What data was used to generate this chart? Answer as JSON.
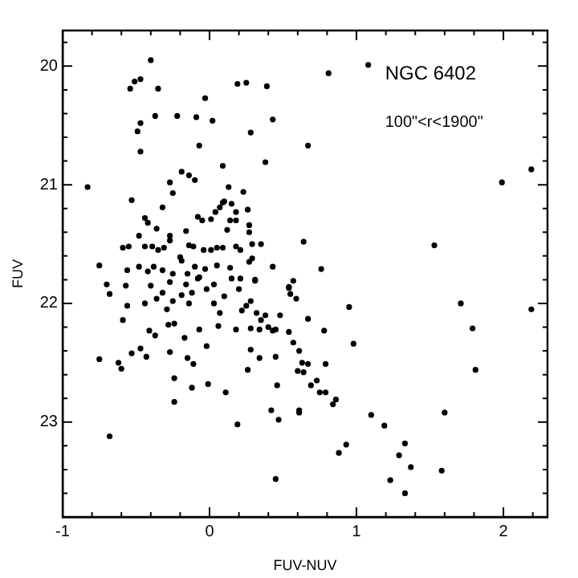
{
  "chart_data": {
    "type": "scatter",
    "xlabel": "FUV-NUV",
    "ylabel": "FUV",
    "annotations": [
      "NGC 6402",
      "100\"<r<1900\""
    ],
    "xlim": [
      -1,
      2.3
    ],
    "ylim": [
      23.8,
      19.7
    ],
    "xticks": [
      -1,
      {
        "value": -0.8,
        "label": null
      },
      {
        "value": -0.6,
        "label": null
      },
      {
        "value": -0.4,
        "label": null
      },
      {
        "value": -0.2,
        "label": null
      },
      0,
      {
        "value": 0.2,
        "label": null
      },
      {
        "value": 0.4,
        "label": null
      },
      {
        "value": 0.6,
        "label": null
      },
      {
        "value": 0.8,
        "label": null
      },
      1,
      {
        "value": 1.2,
        "label": null
      },
      {
        "value": 1.4,
        "label": null
      },
      {
        "value": 1.6,
        "label": null
      },
      {
        "value": 1.8,
        "label": null
      },
      2,
      {
        "value": 2.2,
        "label": null
      }
    ],
    "yticks": [
      {
        "value": 19.8,
        "label": null
      },
      20,
      {
        "value": 20.2,
        "label": null
      },
      {
        "value": 20.4,
        "label": null
      },
      {
        "value": 20.6,
        "label": null
      },
      {
        "value": 20.8,
        "label": null
      },
      21,
      {
        "value": 21.2,
        "label": null
      },
      {
        "value": 21.4,
        "label": null
      },
      {
        "value": 21.6,
        "label": null
      },
      {
        "value": 21.8,
        "label": null
      },
      22,
      {
        "value": 22.2,
        "label": null
      },
      {
        "value": 22.4,
        "label": null
      },
      {
        "value": 22.6,
        "label": null
      },
      {
        "value": 22.8,
        "label": null
      },
      23,
      {
        "value": 23.2,
        "label": null
      },
      {
        "value": 23.4,
        "label": null
      },
      {
        "value": 23.6,
        "label": null
      }
    ],
    "grid": false,
    "legend": false,
    "marker": "circle",
    "series": [
      {
        "color": "#000000",
        "x": [
          -0.4,
          -0.54,
          -0.51,
          -0.47,
          -0.35,
          -0.03,
          0.19,
          0.25,
          0.39,
          -0.37,
          -0.22,
          -0.09,
          0.02,
          0.43,
          -0.47,
          -0.49,
          0.28,
          -0.47,
          -0.07,
          0.09,
          0.38,
          -0.19,
          -0.14,
          -0.1,
          -0.83,
          -0.27,
          -0.25,
          -0.53,
          -0.32,
          0.13,
          0.23,
          0.09,
          0.15,
          0.26,
          -0.44,
          -0.42,
          -0.48,
          -0.36,
          -0.27,
          -0.16,
          -0.08,
          -0.05,
          0.01,
          0.04,
          0.07,
          0.1,
          0.12,
          0.14,
          0.18,
          0.18,
          0.27,
          0.27,
          0.35,
          0.29,
          -0.59,
          -0.55,
          -0.44,
          -0.39,
          -0.35,
          -0.27,
          -0.31,
          -0.2,
          -0.14,
          -0.11,
          -0.04,
          0.01,
          0.05,
          0.09,
          0.18,
          0.21,
          0.27,
          0.29,
          0.43,
          -0.75,
          -0.7,
          -0.56,
          -0.48,
          -0.42,
          -0.38,
          -0.32,
          -0.25,
          -0.19,
          -0.15,
          -0.1,
          -0.03,
          0.05,
          0.14,
          0.21,
          0.31,
          -0.57,
          -0.4,
          -0.27,
          -0.16,
          -0.08,
          0.03,
          -0.68,
          -0.56,
          -0.59,
          -0.44,
          -0.36,
          -0.32,
          -0.29,
          -0.25,
          -0.19,
          -0.14,
          -0.12,
          -0.07,
          -0.02,
          0.03,
          0.07,
          0.1,
          0.15,
          0.2,
          0.22,
          0.25,
          0.28,
          0.31,
          0.32,
          0.35,
          0.38,
          0.43,
          0.48,
          0.54,
          -0.41,
          -0.37,
          -0.28,
          -0.24,
          -0.17,
          -0.07,
          0.06,
          0.18,
          0.28,
          0.34,
          0.4,
          0.45,
          -0.75,
          -0.62,
          -0.6,
          -0.53,
          -0.47,
          -0.43,
          -0.27,
          -0.15,
          -0.11,
          -0.02,
          0.26,
          0.28,
          0.34,
          0.45,
          -0.24,
          -0.24,
          -0.12,
          -0.01,
          0.11,
          0.46,
          0.42,
          0.47,
          0.19,
          -0.68,
          0.45,
          0.81,
          1.08,
          0.67,
          1.99,
          2.19,
          1.53,
          0.64,
          0.76,
          0.57,
          0.54,
          0.59,
          0.55,
          0.67,
          0.54,
          0.78,
          0.95,
          0.98,
          0.57,
          0.61,
          0.63,
          0.67,
          0.64,
          0.6,
          0.79,
          0.73,
          0.69,
          0.75,
          0.79,
          0.86,
          0.84,
          0.61,
          0.61,
          1.1,
          1.19,
          0.93,
          0.88,
          1.33,
          1.29,
          1.37,
          1.23,
          1.33,
          1.58,
          1.6,
          1.71,
          1.79,
          1.81,
          2.19
        ],
        "values": [
          19.95,
          20.19,
          20.13,
          20.11,
          20.19,
          20.27,
          20.15,
          20.14,
          20.17,
          20.42,
          20.42,
          20.43,
          20.46,
          20.45,
          20.48,
          20.55,
          20.56,
          20.72,
          20.67,
          20.84,
          20.81,
          20.89,
          20.92,
          20.96,
          21.02,
          20.98,
          21.07,
          21.13,
          21.19,
          21.02,
          21.06,
          21.15,
          21.16,
          21.21,
          21.28,
          21.32,
          21.43,
          21.37,
          21.43,
          21.39,
          21.27,
          21.3,
          21.29,
          21.23,
          21.19,
          21.14,
          21.38,
          21.3,
          21.3,
          21.23,
          21.34,
          21.4,
          21.5,
          21.5,
          21.53,
          21.52,
          21.52,
          21.52,
          21.55,
          21.47,
          21.53,
          21.61,
          21.51,
          21.52,
          21.55,
          21.55,
          21.53,
          21.53,
          21.52,
          21.55,
          21.65,
          21.62,
          21.69,
          21.68,
          21.84,
          21.72,
          21.69,
          21.73,
          21.69,
          21.72,
          21.75,
          21.64,
          21.75,
          21.69,
          21.71,
          21.68,
          21.7,
          21.79,
          21.81,
          21.85,
          21.85,
          21.82,
          21.84,
          21.79,
          21.84,
          21.92,
          22.02,
          22.14,
          22.0,
          21.96,
          21.91,
          22.05,
          21.98,
          21.93,
          22.0,
          21.91,
          21.78,
          21.88,
          22.0,
          22.08,
          21.94,
          21.79,
          21.88,
          22.06,
          22.02,
          21.98,
          21.8,
          22.08,
          22.14,
          22.1,
          22.23,
          22.1,
          21.87,
          22.23,
          22.27,
          22.18,
          22.17,
          22.29,
          22.22,
          22.19,
          22.22,
          22.21,
          22.22,
          22.2,
          22.22,
          22.47,
          22.5,
          22.55,
          22.42,
          22.38,
          22.45,
          22.41,
          22.46,
          22.51,
          22.36,
          22.56,
          22.39,
          22.46,
          22.45,
          22.63,
          22.83,
          22.71,
          22.68,
          22.75,
          22.69,
          22.9,
          22.98,
          23.02,
          23.12,
          23.48,
          20.06,
          19.99,
          20.67,
          20.98,
          20.87,
          21.51,
          21.48,
          21.71,
          21.81,
          21.86,
          21.96,
          21.92,
          22.13,
          22.24,
          22.23,
          22.03,
          22.34,
          22.33,
          22.4,
          22.5,
          22.51,
          22.58,
          22.57,
          22.51,
          22.65,
          22.69,
          22.75,
          22.75,
          22.81,
          22.85,
          22.9,
          22.92,
          22.94,
          23.03,
          23.19,
          23.26,
          23.18,
          23.28,
          23.38,
          23.49,
          23.6,
          23.41,
          22.92,
          22.0,
          22.21,
          22.56,
          22.05
        ]
      }
    ]
  }
}
